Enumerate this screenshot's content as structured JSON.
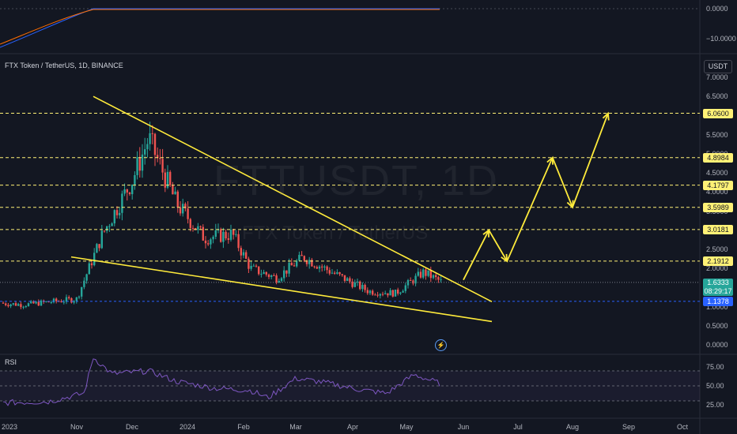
{
  "symbol": {
    "title": "FTX Token / TetherUS, 1D, BINANCE",
    "watermark_ticker": "FTTUSDT, 1D",
    "watermark_name": "FTX Token / TetherUS"
  },
  "currency": "USDT",
  "rsi": {
    "title": "RSI",
    "levels": [
      "75.00",
      "50.00",
      "25.00"
    ]
  },
  "top_indicator": {
    "levels": [
      "0.0000",
      "−10.0000"
    ]
  },
  "price_axis": [
    "7.0000",
    "6.5000",
    "6.0000",
    "5.5000",
    "5.0000",
    "4.5000",
    "4.0000",
    "3.5000",
    "3.0000",
    "2.5000",
    "2.0000",
    "1.5000",
    "1.0000",
    "0.5000",
    "0.0000"
  ],
  "time_axis": [
    "2023",
    "Nov",
    "Dec",
    "2024",
    "Feb",
    "Mar",
    "Apr",
    "May",
    "Jun",
    "Jul",
    "Aug",
    "Sep",
    "Oct"
  ],
  "price_tags": [
    {
      "value": "6.0600",
      "kind": "level"
    },
    {
      "value": "4.8984",
      "kind": "level"
    },
    {
      "value": "4.1797",
      "kind": "level"
    },
    {
      "value": "3.5989",
      "kind": "level"
    },
    {
      "value": "3.0181",
      "kind": "level"
    },
    {
      "value": "2.1912",
      "kind": "level"
    },
    {
      "value": "1.1378",
      "kind": "support"
    }
  ],
  "last_price": {
    "value": "1.6333",
    "countdown": "08:29:17"
  },
  "colors": {
    "up": "#26a69a",
    "down": "#ef5350",
    "level": "#fff176",
    "trend": "#ffeb3b",
    "rsi": "#7e57c2",
    "support": "#2962ff"
  },
  "chart_data": {
    "type": "line",
    "y_axis": {
      "min": 0,
      "max": 7,
      "unit": "USDT"
    },
    "horizontal_levels": [
      6.06,
      4.8984,
      4.1797,
      3.5989,
      3.0181,
      2.1912
    ],
    "support_level": 1.1378,
    "last_price": 1.6333,
    "price_series": [
      {
        "date": "2023-09",
        "value": 1.1
      },
      {
        "date": "2023-10",
        "value": 1.05
      },
      {
        "date": "2023-11-01",
        "value": 1.2
      },
      {
        "date": "2023-11-15",
        "value": 2.9
      },
      {
        "date": "2023-12-01",
        "value": 4.3
      },
      {
        "date": "2023-12-10",
        "value": 5.4
      },
      {
        "date": "2023-12-25",
        "value": 3.7
      },
      {
        "date": "2024-01-10",
        "value": 2.8
      },
      {
        "date": "2024-01-25",
        "value": 2.9
      },
      {
        "date": "2024-02-05",
        "value": 2.0
      },
      {
        "date": "2024-02-20",
        "value": 1.75
      },
      {
        "date": "2024-03-05",
        "value": 2.3
      },
      {
        "date": "2024-03-20",
        "value": 1.9
      },
      {
        "date": "2024-04-10",
        "value": 1.4
      },
      {
        "date": "2024-04-25",
        "value": 1.35
      },
      {
        "date": "2024-05-10",
        "value": 1.9
      },
      {
        "date": "2024-05-20",
        "value": 1.63
      }
    ],
    "projection": [
      {
        "date": "2024-05-31",
        "value": 1.7
      },
      {
        "date": "2024-06-15",
        "value": 3.0
      },
      {
        "date": "2024-06-25",
        "value": 2.19
      },
      {
        "date": "2024-07-20",
        "value": 4.9
      },
      {
        "date": "2024-08-01",
        "value": 3.6
      },
      {
        "date": "2024-08-20",
        "value": 6.06
      }
    ],
    "rsi_series": [
      {
        "date": "2023-09",
        "value": 27
      },
      {
        "date": "2023-10-15",
        "value": 29
      },
      {
        "date": "2023-11-05",
        "value": 40
      },
      {
        "date": "2023-11-10",
        "value": 88
      },
      {
        "date": "2023-11-20",
        "value": 66
      },
      {
        "date": "2023-12-10",
        "value": 70
      },
      {
        "date": "2023-12-25",
        "value": 56
      },
      {
        "date": "2024-01-15",
        "value": 47
      },
      {
        "date": "2024-02-05",
        "value": 44
      },
      {
        "date": "2024-02-15",
        "value": 34
      },
      {
        "date": "2024-03-01",
        "value": 60
      },
      {
        "date": "2024-03-15",
        "value": 55
      },
      {
        "date": "2024-04-05",
        "value": 45
      },
      {
        "date": "2024-04-20",
        "value": 40
      },
      {
        "date": "2024-05-05",
        "value": 65
      },
      {
        "date": "2024-05-20",
        "value": 52
      }
    ],
    "rsi_range": [
      0,
      100
    ]
  }
}
